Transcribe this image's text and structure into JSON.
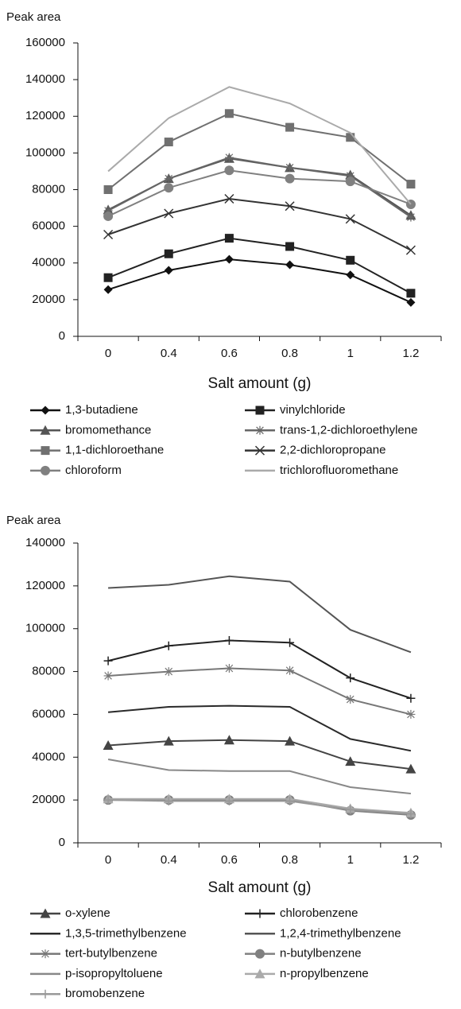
{
  "chart_data": [
    {
      "type": "line",
      "ylabel": "Peak area",
      "xlabel": "Salt amount (g)",
      "categories": [
        "0",
        "0.4",
        "0.6",
        "0.8",
        "1",
        "1.2"
      ],
      "ylim": [
        0,
        160000
      ],
      "yticks": [
        0,
        20000,
        40000,
        60000,
        80000,
        100000,
        120000,
        140000,
        160000
      ],
      "series": [
        {
          "name": "1,3-butadiene",
          "color": "#111111",
          "marker": "diamond",
          "values": [
            25500,
            36000,
            42000,
            39000,
            33500,
            18500
          ]
        },
        {
          "name": "vinylchloride",
          "color": "#222222",
          "marker": "square",
          "values": [
            32000,
            45000,
            53500,
            49000,
            41500,
            23500
          ]
        },
        {
          "name": "bromomethance",
          "color": "#555555",
          "marker": "triangle",
          "values": [
            69000,
            86000,
            97000,
            92000,
            88000,
            66000
          ]
        },
        {
          "name": "trans-1,2-dichloroethylene",
          "color": "#666666",
          "marker": "star",
          "values": [
            68500,
            86000,
            97500,
            92000,
            87500,
            65000
          ]
        },
        {
          "name": "1,1-dichloroethane",
          "color": "#707070",
          "marker": "square",
          "values": [
            80000,
            106000,
            121500,
            114000,
            108500,
            83000
          ]
        },
        {
          "name": "2,2-dichloropropane",
          "color": "#333333",
          "marker": "x",
          "values": [
            55500,
            67000,
            75000,
            71000,
            64000,
            47000
          ]
        },
        {
          "name": "chloroform",
          "color": "#808080",
          "marker": "circle",
          "values": [
            65500,
            81000,
            90500,
            86000,
            84500,
            72000
          ]
        },
        {
          "name": "trichlorofluoromethane",
          "color": "#aaaaaa",
          "marker": "none",
          "values": [
            90000,
            119000,
            136000,
            127000,
            111000,
            72000
          ]
        }
      ]
    },
    {
      "type": "line",
      "ylabel": "Peak area",
      "xlabel": "Salt amount (g)",
      "categories": [
        "0",
        "0.4",
        "0.6",
        "0.8",
        "1",
        "1.2"
      ],
      "ylim": [
        0,
        140000
      ],
      "yticks": [
        0,
        20000,
        40000,
        60000,
        80000,
        100000,
        120000,
        140000
      ],
      "series": [
        {
          "name": "o-xylene",
          "color": "#444444",
          "marker": "triangle",
          "values": [
            45500,
            47500,
            48000,
            47500,
            38000,
            34500
          ]
        },
        {
          "name": "chlorobenzene",
          "color": "#222222",
          "marker": "plus",
          "values": [
            85000,
            92000,
            94500,
            93500,
            77000,
            67500
          ]
        },
        {
          "name": "1,3,5-trimethylbenzene",
          "color": "#2a2a2a",
          "marker": "none",
          "values": [
            61000,
            63500,
            64000,
            63500,
            48500,
            43000
          ]
        },
        {
          "name": "1,2,4-trimethylbenzene",
          "color": "#555555",
          "marker": "none",
          "values": [
            119000,
            120500,
            124500,
            122000,
            99500,
            89000
          ]
        },
        {
          "name": "tert-butylbenzene",
          "color": "#777777",
          "marker": "star",
          "values": [
            78000,
            80000,
            81500,
            80500,
            67000,
            60000
          ]
        },
        {
          "name": "n-butylbenzene",
          "color": "#808080",
          "marker": "circle",
          "values": [
            20000,
            20000,
            20000,
            20000,
            15000,
            13000
          ]
        },
        {
          "name": "p-isopropyltoluene",
          "color": "#888888",
          "marker": "none",
          "values": [
            39000,
            34000,
            33500,
            33500,
            26000,
            23000
          ]
        },
        {
          "name": "n-propylbenzene",
          "color": "#aaaaaa",
          "marker": "triangle",
          "values": [
            20500,
            20500,
            20500,
            20500,
            16000,
            14000
          ]
        },
        {
          "name": "bromobenzene",
          "color": "#999999",
          "marker": "plus",
          "values": [
            20000,
            19500,
            19500,
            19500,
            15500,
            13500
          ]
        }
      ]
    }
  ]
}
